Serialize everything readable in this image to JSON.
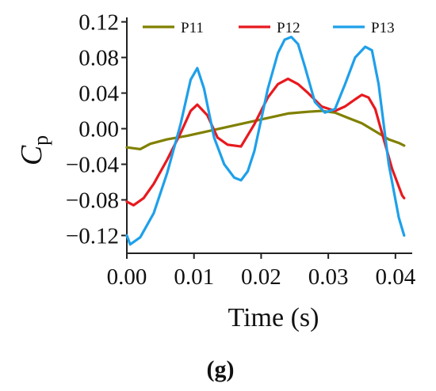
{
  "chart_data": {
    "type": "line",
    "panel_label": "(g)",
    "xlabel": "Time (s)",
    "ylabel": {
      "symbol": "C",
      "subscript": "p"
    },
    "xlim": [
      0.0,
      0.0425
    ],
    "ylim": [
      -0.14,
      0.125
    ],
    "xticks": [
      0.0,
      0.01,
      0.02,
      0.03,
      0.04
    ],
    "xtick_labels": [
      "0.00",
      "0.01",
      "0.02",
      "0.03",
      "0.04"
    ],
    "yticks": [
      -0.12,
      -0.08,
      -0.04,
      0.0,
      0.04,
      0.08,
      0.12
    ],
    "ytick_labels": [
      "−0.12",
      "−0.08",
      "−0.04",
      "0.00",
      "0.04",
      "0.08",
      "0.12"
    ],
    "grid": false,
    "legend_position": "top",
    "series": [
      {
        "name": "P11",
        "color": "#808000",
        "x": [
          0.0,
          0.002,
          0.0035,
          0.006,
          0.009,
          0.012,
          0.015,
          0.018,
          0.021,
          0.024,
          0.027,
          0.029,
          0.031,
          0.033,
          0.035,
          0.037,
          0.039,
          0.0405,
          0.0413
        ],
        "y": [
          -0.021,
          -0.023,
          -0.017,
          -0.012,
          -0.008,
          -0.003,
          0.002,
          0.007,
          0.012,
          0.017,
          0.019,
          0.02,
          0.018,
          0.012,
          0.006,
          -0.003,
          -0.012,
          -0.016,
          -0.019
        ]
      },
      {
        "name": "P12",
        "color": "#e8191e",
        "x": [
          0.0,
          0.001,
          0.0025,
          0.004,
          0.006,
          0.008,
          0.0095,
          0.0105,
          0.012,
          0.0135,
          0.015,
          0.017,
          0.019,
          0.021,
          0.0225,
          0.024,
          0.0255,
          0.027,
          0.029,
          0.031,
          0.0325,
          0.034,
          0.035,
          0.036,
          0.037,
          0.038,
          0.0395,
          0.041,
          0.0413
        ],
        "y": [
          -0.082,
          -0.086,
          -0.078,
          -0.062,
          -0.035,
          -0.005,
          0.02,
          0.027,
          0.015,
          -0.01,
          -0.018,
          -0.02,
          0.005,
          0.035,
          0.05,
          0.056,
          0.05,
          0.04,
          0.025,
          0.02,
          0.025,
          0.033,
          0.038,
          0.035,
          0.022,
          -0.005,
          -0.045,
          -0.075,
          -0.078
        ]
      },
      {
        "name": "P13",
        "color": "#1ea0ea",
        "x": [
          0.0,
          0.0005,
          0.002,
          0.004,
          0.006,
          0.008,
          0.0095,
          0.0105,
          0.0115,
          0.013,
          0.0145,
          0.016,
          0.017,
          0.018,
          0.019,
          0.021,
          0.0225,
          0.0235,
          0.0245,
          0.0255,
          0.0265,
          0.028,
          0.0295,
          0.031,
          0.0325,
          0.034,
          0.0355,
          0.0365,
          0.0375,
          0.039,
          0.0405,
          0.0413
        ],
        "y": [
          -0.12,
          -0.13,
          -0.122,
          -0.095,
          -0.05,
          0.005,
          0.055,
          0.068,
          0.045,
          -0.01,
          -0.04,
          -0.055,
          -0.058,
          -0.048,
          -0.025,
          0.045,
          0.085,
          0.1,
          0.103,
          0.095,
          0.07,
          0.03,
          0.018,
          0.022,
          0.05,
          0.08,
          0.092,
          0.088,
          0.05,
          -0.04,
          -0.1,
          -0.12
        ]
      }
    ]
  }
}
